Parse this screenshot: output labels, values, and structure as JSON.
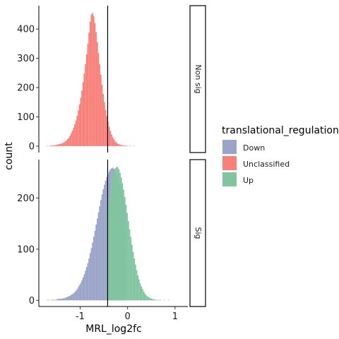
{
  "chart_data": {
    "type": "histogram",
    "x_label": "MRL_log2fc",
    "y_label": "count",
    "x_ticks": [
      -1,
      0,
      1
    ],
    "x_range": [
      -1.87,
      1.27
    ],
    "vertical_line_x": -0.42,
    "colors": {
      "Down": "#9aa3c8",
      "Unclassified": "#f8807a",
      "Up": "#80c5a0"
    },
    "legend": {
      "title": "translational_regulation",
      "entries": [
        "Down",
        "Unclassified",
        "Up"
      ]
    },
    "bins": {
      "start": -1.7,
      "width": 0.025
    },
    "panels": [
      {
        "strip": "Non sig",
        "y_ticks": [
          0,
          100,
          200,
          300,
          400
        ],
        "y_range": [
          -22,
          480
        ],
        "series": [
          {
            "name": "Unclassified",
            "values": [
              1,
              0,
              1,
              2,
              2,
              3,
              3,
              4,
              5,
              6,
              7,
              8,
              9,
              11,
              13,
              16,
              19,
              24,
              29,
              36,
              44,
              53,
              63,
              75,
              88,
              104,
              122,
              142,
              165,
              190,
              218,
              248,
              280,
              314,
              350,
              388,
              425,
              450,
              455,
              444,
              420,
              390,
              355,
              318,
              280,
              244,
              210,
              178,
              150,
              124,
              102,
              83,
              66,
              52,
              40,
              31,
              23,
              17,
              13,
              9,
              7,
              5,
              4,
              3,
              2,
              2,
              1,
              1,
              1,
              0,
              1,
              0,
              0,
              1
            ]
          }
        ]
      },
      {
        "strip": "Sig",
        "y_ticks": [
          0,
          100,
          200
        ],
        "y_range": [
          -12,
          275
        ],
        "series": [
          {
            "name": "Down",
            "values": [
              1,
              1,
              0,
              1,
              1,
              1,
              1,
              1,
              2,
              3,
              3,
              3,
              3,
              4,
              4,
              5,
              6,
              7,
              8,
              9,
              11,
              12,
              14,
              16,
              19,
              22,
              26,
              30,
              34,
              39,
              45,
              51,
              58,
              65,
              73,
              82,
              92,
              102,
              113,
              124,
              136,
              148,
              160,
              172,
              184,
              196,
              207,
              217,
              226,
              234,
              241,
              247,
              252,
              256,
              258,
              259,
              257,
              254,
              249,
              243,
              236,
              228,
              219,
              209,
              198,
              187,
              176
            ]
          },
          {
            "name": "Up",
            "values": [
              180,
              200,
              218,
              232,
              243,
              252,
              258,
              261,
              260,
              256,
              249,
              240,
              229,
              216,
              202,
              187,
              171,
              155,
              139,
              124,
              109,
              95,
              82,
              70,
              59,
              49,
              41,
              33,
              27,
              22,
              17,
              13,
              10,
              8,
              6,
              5,
              4,
              3,
              2,
              2,
              1,
              1,
              1,
              1,
              1,
              0,
              0,
              1,
              0,
              0,
              0,
              1
            ]
          }
        ]
      }
    ]
  }
}
